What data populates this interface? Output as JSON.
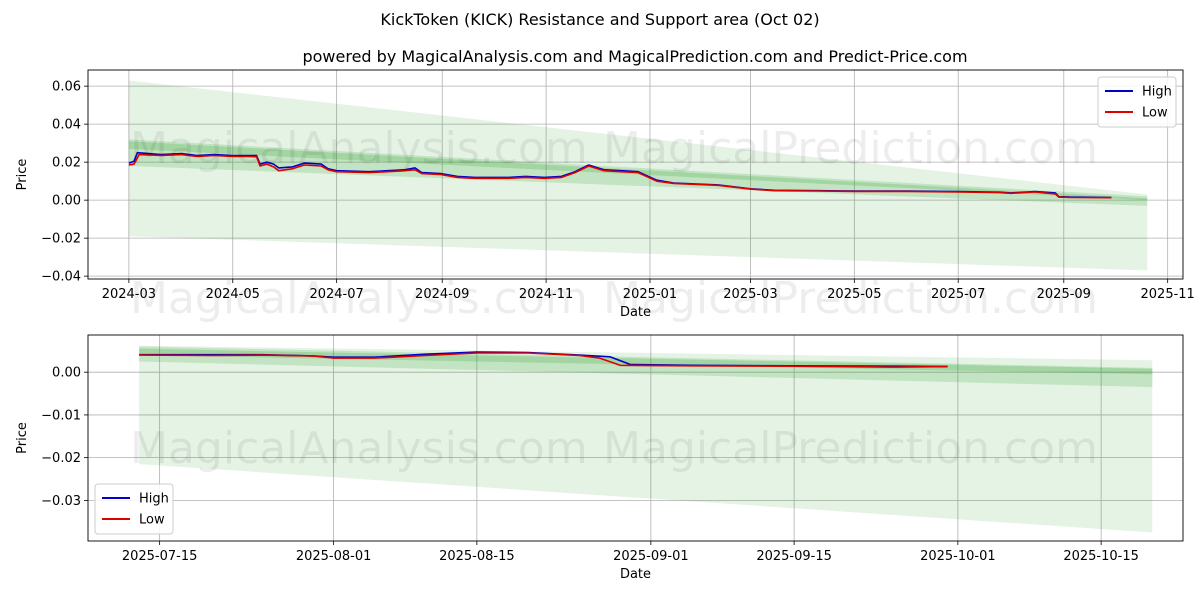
{
  "title": "KickToken (KICK) Resistance and Support area (Oct 02)",
  "subtitle": "powered by MagicalAnalysis.com and MagicalPrediction.com and Predict-Price.com",
  "watermarks": [
    "MagicalAnalysis.com",
    "MagicalPrediction.com"
  ],
  "colors": {
    "high": "#0000cc",
    "low": "#dd0000",
    "band": "#2ca02c",
    "grid": "#b0b0b0"
  },
  "chart_data": [
    {
      "type": "line",
      "xlabel": "Date",
      "ylabel": "Price",
      "x_domain": [
        "2024-02-06",
        "2025-11-10"
      ],
      "ylim": [
        -0.0415,
        0.0685
      ],
      "x_ticks": [
        "2024-03",
        "2024-05",
        "2024-07",
        "2024-09",
        "2024-11",
        "2025-01",
        "2025-03",
        "2025-05",
        "2025-07",
        "2025-09",
        "2025-11"
      ],
      "x_tick_dates": [
        "2024-03-01",
        "2024-05-01",
        "2024-07-01",
        "2024-09-01",
        "2024-11-01",
        "2025-01-01",
        "2025-03-01",
        "2025-05-01",
        "2025-07-01",
        "2025-09-01",
        "2025-11-01"
      ],
      "y_ticks": [
        "0.06",
        "0.04",
        "0.02",
        "0.00",
        "−0.02",
        "−0.04"
      ],
      "y_tick_values": [
        0.06,
        0.04,
        0.02,
        0.0,
        -0.02,
        -0.04
      ],
      "legend": {
        "high": "High",
        "low": "Low",
        "position": "top-right"
      },
      "bands": [
        {
          "start": "2024-03-01",
          "end": "2025-10-20",
          "start_range": [
            -0.019,
            0.063
          ],
          "end_range": [
            -0.037,
            0.003
          ]
        },
        {
          "start": "2024-03-01",
          "end": "2025-10-20",
          "start_range": [
            0.018,
            0.032
          ],
          "end_range": [
            -0.003,
            0.002
          ]
        },
        {
          "start": "2024-03-01",
          "end": "2025-10-20",
          "start_range": [
            0.027,
            0.031
          ],
          "end_range": [
            0.0,
            0.001
          ]
        }
      ],
      "series": [
        {
          "name": "High",
          "points": [
            [
              "2024-03-01",
              0.0195
            ],
            [
              "2024-03-04",
              0.0205
            ],
            [
              "2024-03-06",
              0.025
            ],
            [
              "2024-03-20",
              0.024
            ],
            [
              "2024-04-01",
              0.0245
            ],
            [
              "2024-04-10",
              0.0235
            ],
            [
              "2024-04-20",
              0.024
            ],
            [
              "2024-05-01",
              0.0235
            ],
            [
              "2024-05-10",
              0.0235
            ],
            [
              "2024-05-15",
              0.0235
            ],
            [
              "2024-05-17",
              0.019
            ],
            [
              "2024-05-21",
              0.02
            ],
            [
              "2024-05-25",
              0.019
            ],
            [
              "2024-05-28",
              0.017
            ],
            [
              "2024-06-05",
              0.0175
            ],
            [
              "2024-06-12",
              0.0195
            ],
            [
              "2024-06-22",
              0.019
            ],
            [
              "2024-06-26",
              0.0165
            ],
            [
              "2024-07-01",
              0.0155
            ],
            [
              "2024-07-20",
              0.015
            ],
            [
              "2024-07-31",
              0.0155
            ],
            [
              "2024-08-10",
              0.016
            ],
            [
              "2024-08-16",
              0.017
            ],
            [
              "2024-08-20",
              0.0145
            ],
            [
              "2024-08-31",
              0.014
            ],
            [
              "2024-09-10",
              0.0125
            ],
            [
              "2024-09-20",
              0.012
            ],
            [
              "2024-10-10",
              0.012
            ],
            [
              "2024-10-20",
              0.0125
            ],
            [
              "2024-10-31",
              0.012
            ],
            [
              "2024-11-10",
              0.0125
            ],
            [
              "2024-11-18",
              0.015
            ],
            [
              "2024-11-26",
              0.0185
            ],
            [
              "2024-12-05",
              0.016
            ],
            [
              "2024-12-15",
              0.0155
            ],
            [
              "2024-12-25",
              0.015
            ],
            [
              "2025-01-05",
              0.0105
            ],
            [
              "2025-01-15",
              0.009
            ],
            [
              "2025-02-10",
              0.008
            ],
            [
              "2025-03-01",
              0.006
            ],
            [
              "2025-03-15",
              0.0052
            ],
            [
              "2025-04-10",
              0.005
            ],
            [
              "2025-05-01",
              0.0048
            ],
            [
              "2025-06-01",
              0.0048
            ],
            [
              "2025-07-01",
              0.0045
            ],
            [
              "2025-07-25",
              0.0042
            ],
            [
              "2025-08-01",
              0.0038
            ],
            [
              "2025-08-15",
              0.0045
            ],
            [
              "2025-08-27",
              0.0038
            ],
            [
              "2025-08-29",
              0.0018
            ],
            [
              "2025-09-05",
              0.0016
            ],
            [
              "2025-09-29",
              0.0014
            ]
          ]
        },
        {
          "name": "Low",
          "points": [
            [
              "2024-03-01",
              0.0185
            ],
            [
              "2024-03-04",
              0.019
            ],
            [
              "2024-03-07",
              0.024
            ],
            [
              "2024-03-20",
              0.0235
            ],
            [
              "2024-04-01",
              0.024
            ],
            [
              "2024-04-10",
              0.023
            ],
            [
              "2024-04-20",
              0.0235
            ],
            [
              "2024-05-01",
              0.023
            ],
            [
              "2024-05-10",
              0.023
            ],
            [
              "2024-05-15",
              0.0228
            ],
            [
              "2024-05-17",
              0.018
            ],
            [
              "2024-05-21",
              0.019
            ],
            [
              "2024-05-25",
              0.0175
            ],
            [
              "2024-05-28",
              0.0155
            ],
            [
              "2024-06-05",
              0.0165
            ],
            [
              "2024-06-12",
              0.0185
            ],
            [
              "2024-06-22",
              0.018
            ],
            [
              "2024-06-26",
              0.016
            ],
            [
              "2024-07-01",
              0.015
            ],
            [
              "2024-07-20",
              0.0145
            ],
            [
              "2024-07-31",
              0.015
            ],
            [
              "2024-08-10",
              0.0155
            ],
            [
              "2024-08-16",
              0.016
            ],
            [
              "2024-08-20",
              0.014
            ],
            [
              "2024-08-31",
              0.0135
            ],
            [
              "2024-09-10",
              0.012
            ],
            [
              "2024-09-20",
              0.0115
            ],
            [
              "2024-10-10",
              0.0115
            ],
            [
              "2024-10-20",
              0.012
            ],
            [
              "2024-10-31",
              0.0115
            ],
            [
              "2024-11-10",
              0.012
            ],
            [
              "2024-11-18",
              0.0145
            ],
            [
              "2024-11-26",
              0.018
            ],
            [
              "2024-12-05",
              0.0155
            ],
            [
              "2024-12-15",
              0.015
            ],
            [
              "2024-12-25",
              0.0145
            ],
            [
              "2025-01-05",
              0.01
            ],
            [
              "2025-01-15",
              0.0088
            ],
            [
              "2025-02-10",
              0.0078
            ],
            [
              "2025-03-01",
              0.0058
            ],
            [
              "2025-03-15",
              0.005
            ],
            [
              "2025-04-10",
              0.0048
            ],
            [
              "2025-05-01",
              0.0046
            ],
            [
              "2025-06-01",
              0.0046
            ],
            [
              "2025-07-01",
              0.0043
            ],
            [
              "2025-07-25",
              0.004
            ],
            [
              "2025-08-01",
              0.0036
            ],
            [
              "2025-08-15",
              0.0043
            ],
            [
              "2025-08-27",
              0.0033
            ],
            [
              "2025-08-29",
              0.0016
            ],
            [
              "2025-09-05",
              0.0014
            ],
            [
              "2025-09-29",
              0.0013
            ]
          ]
        }
      ]
    },
    {
      "type": "line",
      "xlabel": "Date",
      "ylabel": "Price",
      "x_domain": [
        "2025-07-08",
        "2025-10-23"
      ],
      "ylim": [
        -0.0395,
        0.0087
      ],
      "x_ticks": [
        "2025-07-15",
        "2025-08-01",
        "2025-08-15",
        "2025-09-01",
        "2025-09-15",
        "2025-10-01",
        "2025-10-15"
      ],
      "x_tick_dates": [
        "2025-07-15",
        "2025-08-01",
        "2025-08-15",
        "2025-09-01",
        "2025-09-15",
        "2025-10-01",
        "2025-10-15"
      ],
      "y_ticks": [
        "0.00",
        "−0.01",
        "−0.02",
        "−0.03"
      ],
      "y_tick_values": [
        0.0,
        -0.01,
        -0.02,
        -0.03
      ],
      "legend": {
        "high": "High",
        "low": "Low",
        "position": "bottom-left"
      },
      "bands": [
        {
          "start": "2025-07-13",
          "end": "2025-10-20",
          "start_range": [
            -0.0215,
            0.0062
          ],
          "end_range": [
            -0.0375,
            0.0028
          ]
        },
        {
          "start": "2025-07-13",
          "end": "2025-10-20",
          "start_range": [
            0.0025,
            0.006
          ],
          "end_range": [
            -0.0035,
            0.001
          ]
        },
        {
          "start": "2025-07-13",
          "end": "2025-10-20",
          "start_range": [
            0.004,
            0.0055
          ],
          "end_range": [
            -0.0005,
            0.0008
          ]
        }
      ],
      "series": [
        {
          "name": "High",
          "points": [
            [
              "2025-07-13",
              0.0041
            ],
            [
              "2025-07-20",
              0.0041
            ],
            [
              "2025-07-25",
              0.0041
            ],
            [
              "2025-07-30",
              0.0038
            ],
            [
              "2025-08-01",
              0.0035
            ],
            [
              "2025-08-05",
              0.0035
            ],
            [
              "2025-08-10",
              0.0042
            ],
            [
              "2025-08-15",
              0.0047
            ],
            [
              "2025-08-20",
              0.0046
            ],
            [
              "2025-08-25",
              0.004
            ],
            [
              "2025-08-28",
              0.0036
            ],
            [
              "2025-08-30",
              0.0018
            ],
            [
              "2025-09-05",
              0.0016
            ],
            [
              "2025-09-15",
              0.0015
            ],
            [
              "2025-09-25",
              0.0014
            ],
            [
              "2025-09-30",
              0.0013
            ]
          ]
        },
        {
          "name": "Low",
          "points": [
            [
              "2025-07-13",
              0.004
            ],
            [
              "2025-07-20",
              0.0039
            ],
            [
              "2025-07-25",
              0.004
            ],
            [
              "2025-07-30",
              0.0038
            ],
            [
              "2025-08-01",
              0.0033
            ],
            [
              "2025-08-05",
              0.0033
            ],
            [
              "2025-08-10",
              0.0039
            ],
            [
              "2025-08-15",
              0.0045
            ],
            [
              "2025-08-20",
              0.0045
            ],
            [
              "2025-08-25",
              0.0039
            ],
            [
              "2025-08-27",
              0.0033
            ],
            [
              "2025-08-29",
              0.0016
            ],
            [
              "2025-09-05",
              0.0015
            ],
            [
              "2025-09-15",
              0.0014
            ],
            [
              "2025-09-25",
              0.0012
            ],
            [
              "2025-09-30",
              0.0013
            ]
          ]
        }
      ]
    }
  ]
}
